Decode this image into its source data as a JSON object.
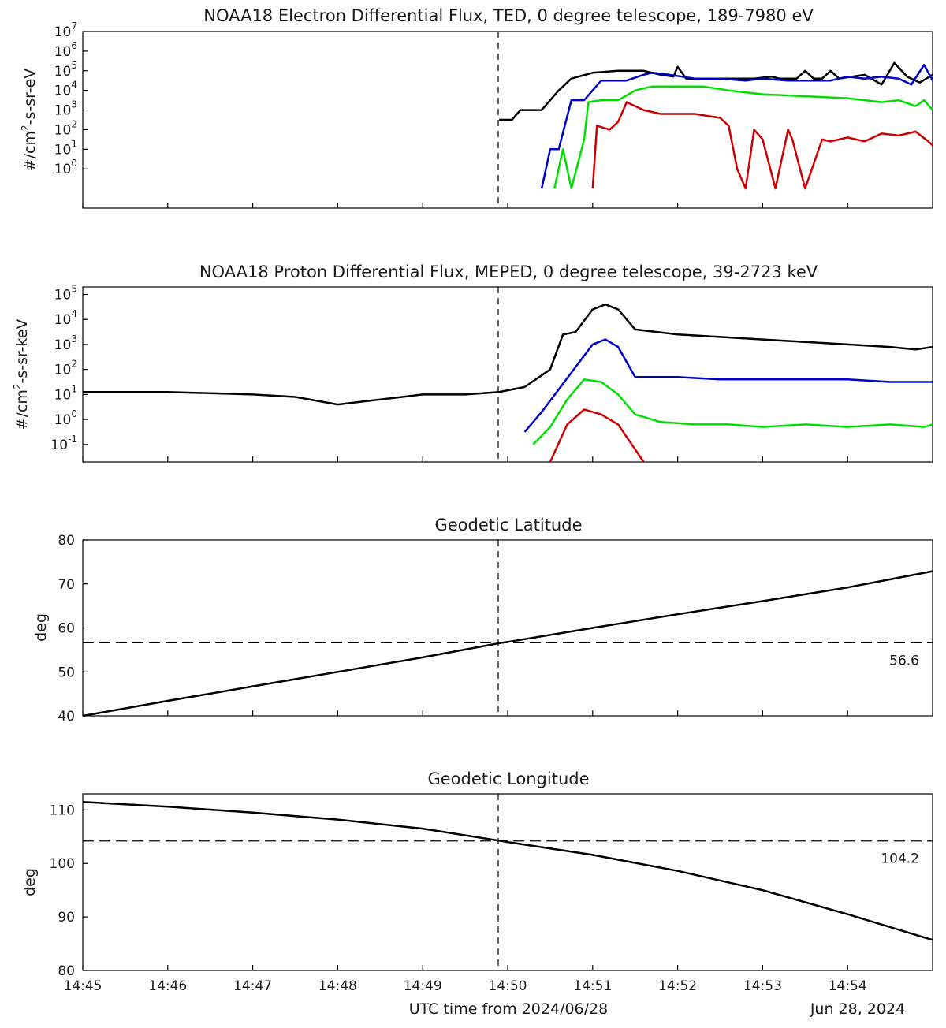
{
  "figure": {
    "xlabel": "UTC time from 2024/06/28",
    "date_label": "Jun 28, 2024",
    "time_ticks": [
      "14:45",
      "14:46",
      "14:47",
      "14:48",
      "14:49",
      "14:50",
      "14:51",
      "14:52",
      "14:53",
      "14:54"
    ],
    "event_time": "14:49:55"
  },
  "chart_data": [
    {
      "type": "line",
      "title": "NOAA18 Electron Differential Flux, TED, 0 degree telescope, 189-7980 eV",
      "ylabel": "#/cm2-s-sr-eV",
      "yscale": "log",
      "ylim_exp": [
        -2,
        7
      ],
      "y_ticks": [
        "10^0",
        "10^1",
        "10^2",
        "10^3",
        "10^4",
        "10^5",
        "10^6",
        "10^7"
      ],
      "xlim_min": [
        0,
        10
      ],
      "series": [
        {
          "color": "#000000",
          "points": [
            [
              4.9,
              2.5
            ],
            [
              5.05,
              2.5
            ],
            [
              5.15,
              3
            ],
            [
              5.4,
              3
            ],
            [
              5.6,
              4
            ],
            [
              5.75,
              4.6
            ],
            [
              6,
              4.9
            ],
            [
              6.3,
              5
            ],
            [
              6.6,
              5
            ],
            [
              6.8,
              4.8
            ],
            [
              6.95,
              4.7
            ],
            [
              7.0,
              5.2
            ],
            [
              7.1,
              4.6
            ],
            [
              7.3,
              4.6
            ],
            [
              7.6,
              4.6
            ],
            [
              7.9,
              4.6
            ],
            [
              8.1,
              4.7
            ],
            [
              8.2,
              4.6
            ],
            [
              8.4,
              4.6
            ],
            [
              8.5,
              5.0
            ],
            [
              8.6,
              4.6
            ],
            [
              8.7,
              4.6
            ],
            [
              8.8,
              5.0
            ],
            [
              8.9,
              4.6
            ],
            [
              9.2,
              4.8
            ],
            [
              9.4,
              4.3
            ],
            [
              9.55,
              5.4
            ],
            [
              9.7,
              4.7
            ],
            [
              9.85,
              4.4
            ],
            [
              10.0,
              4.8
            ]
          ]
        },
        {
          "color": "#0000cc",
          "points": [
            [
              5.4,
              -1
            ],
            [
              5.5,
              1
            ],
            [
              5.6,
              1
            ],
            [
              5.75,
              3.5
            ],
            [
              5.9,
              3.5
            ],
            [
              6.1,
              4.5
            ],
            [
              6.4,
              4.5
            ],
            [
              6.6,
              4.8
            ],
            [
              6.7,
              4.9
            ],
            [
              6.9,
              4.8
            ],
            [
              7.2,
              4.6
            ],
            [
              7.5,
              4.6
            ],
            [
              7.8,
              4.5
            ],
            [
              8.0,
              4.6
            ],
            [
              8.3,
              4.5
            ],
            [
              8.5,
              4.5
            ],
            [
              8.8,
              4.5
            ],
            [
              9.0,
              4.7
            ],
            [
              9.2,
              4.6
            ],
            [
              9.4,
              4.7
            ],
            [
              9.6,
              4.6
            ],
            [
              9.75,
              4.3
            ],
            [
              9.9,
              5.3
            ],
            [
              10.0,
              4.5
            ]
          ]
        },
        {
          "color": "#00dd00",
          "points": [
            [
              5.55,
              -1
            ],
            [
              5.65,
              1
            ],
            [
              5.75,
              -1
            ],
            [
              5.9,
              1.5
            ],
            [
              5.95,
              3.4
            ],
            [
              6.1,
              3.5
            ],
            [
              6.3,
              3.5
            ],
            [
              6.5,
              4.0
            ],
            [
              6.7,
              4.2
            ],
            [
              7.0,
              4.2
            ],
            [
              7.3,
              4.2
            ],
            [
              7.6,
              4.0
            ],
            [
              8.0,
              3.8
            ],
            [
              8.5,
              3.7
            ],
            [
              9.0,
              3.6
            ],
            [
              9.4,
              3.4
            ],
            [
              9.6,
              3.5
            ],
            [
              9.8,
              3.2
            ],
            [
              9.9,
              3.5
            ],
            [
              10.0,
              3.0
            ]
          ]
        },
        {
          "color": "#cc0000",
          "points": [
            [
              6.0,
              -1
            ],
            [
              6.05,
              2.2
            ],
            [
              6.2,
              2
            ],
            [
              6.3,
              2.4
            ],
            [
              6.4,
              3.4
            ],
            [
              6.6,
              3.0
            ],
            [
              6.8,
              2.8
            ],
            [
              7.2,
              2.8
            ],
            [
              7.5,
              2.6
            ],
            [
              7.6,
              2.2
            ],
            [
              7.7,
              0
            ],
            [
              7.8,
              -1
            ],
            [
              7.9,
              2.0
            ],
            [
              8.0,
              1.5
            ],
            [
              8.15,
              -1
            ],
            [
              8.3,
              2.0
            ],
            [
              8.35,
              1.5
            ],
            [
              8.5,
              -1
            ],
            [
              8.7,
              1.5
            ],
            [
              8.8,
              1.4
            ],
            [
              9.0,
              1.6
            ],
            [
              9.2,
              1.4
            ],
            [
              9.4,
              1.8
            ],
            [
              9.6,
              1.7
            ],
            [
              9.8,
              1.9
            ],
            [
              9.95,
              1.4
            ],
            [
              10.0,
              1.2
            ]
          ]
        }
      ]
    },
    {
      "type": "line",
      "title": "NOAA18 Proton Differential Flux, MEPED, 0 degree telescope, 39-2723 keV",
      "ylabel": "#/cm2-s-sr-keV",
      "yscale": "log",
      "ylim_exp": [
        -1.7,
        5.3
      ],
      "y_ticks": [
        "10^-1",
        "10^0",
        "10^1",
        "10^2",
        "10^3",
        "10^4",
        "10^5"
      ],
      "xlim_min": [
        0,
        10
      ],
      "series": [
        {
          "color": "#000000",
          "points": [
            [
              0,
              1.1
            ],
            [
              1,
              1.1
            ],
            [
              2,
              1.0
            ],
            [
              2.5,
              0.9
            ],
            [
              3,
              0.6
            ],
            [
              3.5,
              0.8
            ],
            [
              4,
              1.0
            ],
            [
              4.5,
              1.0
            ],
            [
              4.9,
              1.1
            ],
            [
              5.2,
              1.3
            ],
            [
              5.5,
              2.0
            ],
            [
              5.65,
              3.4
            ],
            [
              5.8,
              3.5
            ],
            [
              6.0,
              4.4
            ],
            [
              6.15,
              4.6
            ],
            [
              6.3,
              4.4
            ],
            [
              6.5,
              3.6
            ],
            [
              7.0,
              3.4
            ],
            [
              7.5,
              3.3
            ],
            [
              8,
              3.2
            ],
            [
              8.5,
              3.1
            ],
            [
              9,
              3.0
            ],
            [
              9.5,
              2.9
            ],
            [
              9.8,
              2.8
            ],
            [
              10,
              2.9
            ]
          ]
        },
        {
          "color": "#0000cc",
          "points": [
            [
              5.2,
              -0.5
            ],
            [
              5.4,
              0.3
            ],
            [
              5.6,
              1.2
            ],
            [
              5.8,
              2.1
            ],
            [
              6.0,
              3.0
            ],
            [
              6.15,
              3.2
            ],
            [
              6.3,
              2.9
            ],
            [
              6.5,
              1.7
            ],
            [
              7.0,
              1.7
            ],
            [
              7.5,
              1.6
            ],
            [
              8,
              1.6
            ],
            [
              8.5,
              1.6
            ],
            [
              9,
              1.6
            ],
            [
              9.5,
              1.5
            ],
            [
              10,
              1.5
            ]
          ]
        },
        {
          "color": "#00dd00",
          "points": [
            [
              5.3,
              -1.0
            ],
            [
              5.5,
              -0.3
            ],
            [
              5.7,
              0.8
            ],
            [
              5.9,
              1.6
            ],
            [
              6.1,
              1.5
            ],
            [
              6.3,
              1.0
            ],
            [
              6.5,
              0.2
            ],
            [
              6.8,
              -0.1
            ],
            [
              7.2,
              -0.2
            ],
            [
              7.6,
              -0.2
            ],
            [
              8,
              -0.3
            ],
            [
              8.5,
              -0.2
            ],
            [
              9,
              -0.3
            ],
            [
              9.5,
              -0.2
            ],
            [
              9.9,
              -0.3
            ],
            [
              10,
              -0.2
            ]
          ]
        },
        {
          "color": "#cc0000",
          "points": [
            [
              5.5,
              -1.7
            ],
            [
              5.7,
              -0.2
            ],
            [
              5.9,
              0.4
            ],
            [
              6.1,
              0.2
            ],
            [
              6.3,
              -0.2
            ],
            [
              6.5,
              -1.2
            ],
            [
              6.6,
              -1.7
            ]
          ]
        }
      ]
    },
    {
      "type": "line",
      "title": "Geodetic Latitude",
      "ylabel": "deg",
      "ylim": [
        40,
        80
      ],
      "y_ticks": [
        40,
        50,
        60,
        70,
        80
      ],
      "xlim_min": [
        0,
        10
      ],
      "reference_value": 56.6,
      "reference_label": "56.6",
      "series": [
        {
          "color": "#000000",
          "points": [
            [
              0,
              40.0
            ],
            [
              1,
              43.4
            ],
            [
              2,
              46.7
            ],
            [
              3,
              50.0
            ],
            [
              4,
              53.3
            ],
            [
              4.92,
              56.6
            ],
            [
              5,
              56.8
            ],
            [
              6,
              60.0
            ],
            [
              7,
              63.1
            ],
            [
              8,
              66.1
            ],
            [
              9,
              69.2
            ],
            [
              10,
              72.9
            ]
          ]
        }
      ]
    },
    {
      "type": "line",
      "title": "Geodetic Longitude",
      "ylabel": "deg",
      "ylim": [
        80,
        113
      ],
      "y_ticks": [
        80,
        90,
        100,
        110
      ],
      "xlim_min": [
        0,
        10
      ],
      "reference_value": 104.2,
      "reference_label": "104.2",
      "series": [
        {
          "color": "#000000",
          "points": [
            [
              0,
              111.5
            ],
            [
              1,
              110.6
            ],
            [
              2,
              109.5
            ],
            [
              3,
              108.2
            ],
            [
              4,
              106.5
            ],
            [
              4.92,
              104.2
            ],
            [
              5,
              104.0
            ],
            [
              6,
              101.6
            ],
            [
              7,
              98.6
            ],
            [
              8,
              95.0
            ],
            [
              9,
              90.5
            ],
            [
              10,
              85.7
            ]
          ]
        }
      ]
    }
  ]
}
